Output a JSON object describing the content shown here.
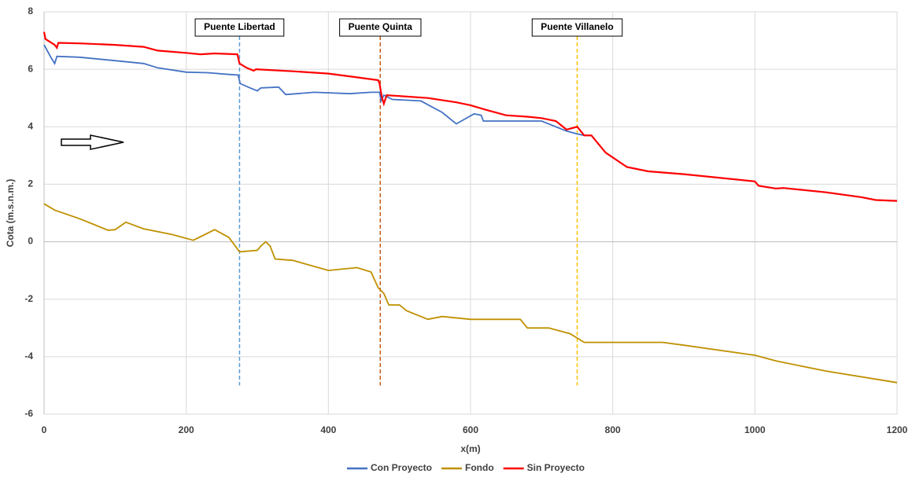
{
  "chart_data": {
    "type": "line",
    "xlabel": "x(m)",
    "ylabel": "Cota (m.s.n.m.)",
    "xlim": [
      0,
      1200
    ],
    "xticks": [
      0,
      200,
      400,
      600,
      800,
      1000,
      1200
    ],
    "ylim": [
      -6,
      8
    ],
    "yticks": [
      -6,
      -4,
      -2,
      0,
      2,
      4,
      6,
      8
    ],
    "grid": true,
    "legend": "bottom",
    "series": [
      {
        "name": "Con Proyecto",
        "color": "#4472c4",
        "x": [
          0,
          10,
          15,
          18,
          50,
          100,
          140,
          160,
          200,
          230,
          260,
          273,
          276,
          290,
          300,
          305,
          330,
          340,
          380,
          430,
          460,
          472,
          474,
          478,
          490,
          530,
          560,
          580,
          605,
          615,
          618,
          650,
          700,
          735,
          750,
          760,
          770,
          790,
          820,
          850,
          900,
          1000,
          1005,
          1030,
          1040,
          1100,
          1150,
          1170,
          1200
        ],
        "values": [
          6.85,
          6.4,
          6.2,
          6.45,
          6.42,
          6.3,
          6.2,
          6.05,
          5.9,
          5.88,
          5.82,
          5.8,
          5.5,
          5.35,
          5.25,
          5.35,
          5.38,
          5.12,
          5.2,
          5.15,
          5.2,
          5.2,
          4.9,
          5.1,
          4.95,
          4.9,
          4.5,
          4.1,
          4.45,
          4.4,
          4.2,
          4.2,
          4.2,
          3.85,
          3.75,
          3.7,
          3.7,
          3.1,
          2.6,
          2.45,
          2.35,
          2.1,
          1.95,
          1.85,
          1.87,
          1.72,
          1.55,
          1.45,
          1.42
        ]
      },
      {
        "name": "Fondo",
        "color": "#bf9000",
        "x": [
          0,
          15,
          50,
          90,
          100,
          115,
          140,
          180,
          210,
          240,
          260,
          275,
          300,
          305,
          312,
          318,
          325,
          350,
          400,
          440,
          460,
          470,
          478,
          485,
          500,
          510,
          540,
          560,
          600,
          670,
          680,
          710,
          740,
          760,
          870,
          900,
          1000,
          1030,
          1100,
          1200
        ],
        "values": [
          1.32,
          1.1,
          0.8,
          0.4,
          0.42,
          0.68,
          0.45,
          0.25,
          0.05,
          0.42,
          0.15,
          -0.35,
          -0.3,
          -0.15,
          0,
          -0.15,
          -0.6,
          -0.65,
          -1.0,
          -0.9,
          -1.05,
          -1.6,
          -1.8,
          -2.2,
          -2.2,
          -2.4,
          -2.7,
          -2.6,
          -2.7,
          -2.7,
          -3.0,
          -3.0,
          -3.2,
          -3.5,
          -3.5,
          -3.6,
          -3.95,
          -4.15,
          -4.5,
          -4.9
        ]
      },
      {
        "name": "Sin Proyecto",
        "color": "#ff0000",
        "x": [
          0,
          2,
          15,
          18,
          20,
          50,
          100,
          140,
          160,
          200,
          220,
          240,
          272,
          275,
          285,
          295,
          298,
          350,
          400,
          440,
          470,
          472,
          475,
          478,
          482,
          500,
          540,
          580,
          600,
          620,
          650,
          680,
          700,
          720,
          735,
          750,
          760,
          770,
          790,
          820,
          850,
          900,
          1000,
          1005,
          1030,
          1040,
          1100,
          1150,
          1170,
          1200
        ],
        "values": [
          7.3,
          7.05,
          6.85,
          6.75,
          6.92,
          6.9,
          6.85,
          6.78,
          6.65,
          6.57,
          6.52,
          6.55,
          6.52,
          6.2,
          6.05,
          5.95,
          6.0,
          5.93,
          5.85,
          5.72,
          5.62,
          5.5,
          5.05,
          4.8,
          5.1,
          5.07,
          5.0,
          4.85,
          4.75,
          4.6,
          4.4,
          4.35,
          4.3,
          4.2,
          3.9,
          4.0,
          3.7,
          3.7,
          3.1,
          2.6,
          2.45,
          2.35,
          2.1,
          1.95,
          1.85,
          1.87,
          1.72,
          1.55,
          1.45,
          1.42
        ]
      }
    ],
    "annotations": [
      {
        "label": "Puente Libertad",
        "x": 275,
        "color": "#5b9bd5",
        "line_to": -5
      },
      {
        "label": "Puente Quinta",
        "x": 473,
        "color": "#c55a11",
        "line_to": -5
      },
      {
        "label": "Puente Villanelo",
        "x": 750,
        "color": "#ffc000",
        "line_to": -5
      }
    ]
  }
}
